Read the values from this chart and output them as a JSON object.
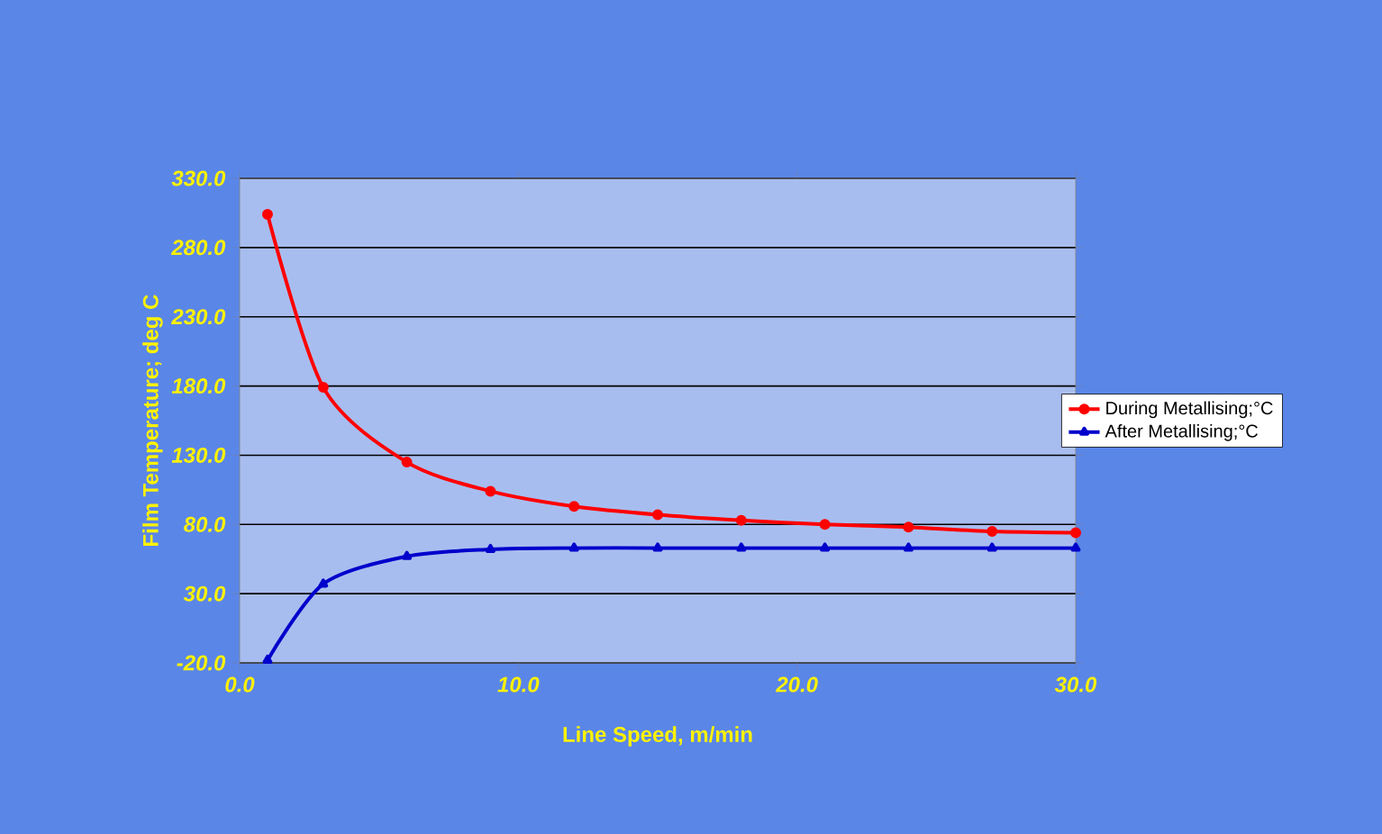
{
  "chart_data": {
    "type": "line",
    "xlabel": "Line Speed, m/min",
    "ylabel": "Film Temperature; deg C",
    "x": [
      1,
      3,
      6,
      9,
      12,
      15,
      18,
      21,
      24,
      27,
      30
    ],
    "series": [
      {
        "name": "During Metallising;°C",
        "color": "#ff0000",
        "marker": "circle",
        "values": [
          304,
          179,
          125,
          104,
          93,
          87,
          83,
          80,
          78,
          75,
          74
        ]
      },
      {
        "name": "After Metallising;°C",
        "color": "#0000cc",
        "marker": "triangle",
        "values": [
          -18,
          37,
          57,
          62,
          63,
          63,
          63,
          63,
          63,
          63,
          63
        ]
      }
    ],
    "xlim": [
      0,
      30
    ],
    "xticks": [
      {
        "value": 0,
        "label": "0.0"
      },
      {
        "value": 10,
        "label": "10.0"
      },
      {
        "value": 20,
        "label": "20.0"
      },
      {
        "value": 30,
        "label": "30.0"
      }
    ],
    "ylim": [
      -20,
      330
    ],
    "yticks": [
      {
        "value": -20,
        "label": "-20.0"
      },
      {
        "value": 30,
        "label": "30.0"
      },
      {
        "value": 80,
        "label": "80.0"
      },
      {
        "value": 130,
        "label": "130.0"
      },
      {
        "value": 180,
        "label": "180.0"
      },
      {
        "value": 230,
        "label": "230.0"
      },
      {
        "value": 280,
        "label": "280.0"
      },
      {
        "value": 330,
        "label": "330.0"
      }
    ],
    "grid": "y",
    "legend": "right"
  }
}
